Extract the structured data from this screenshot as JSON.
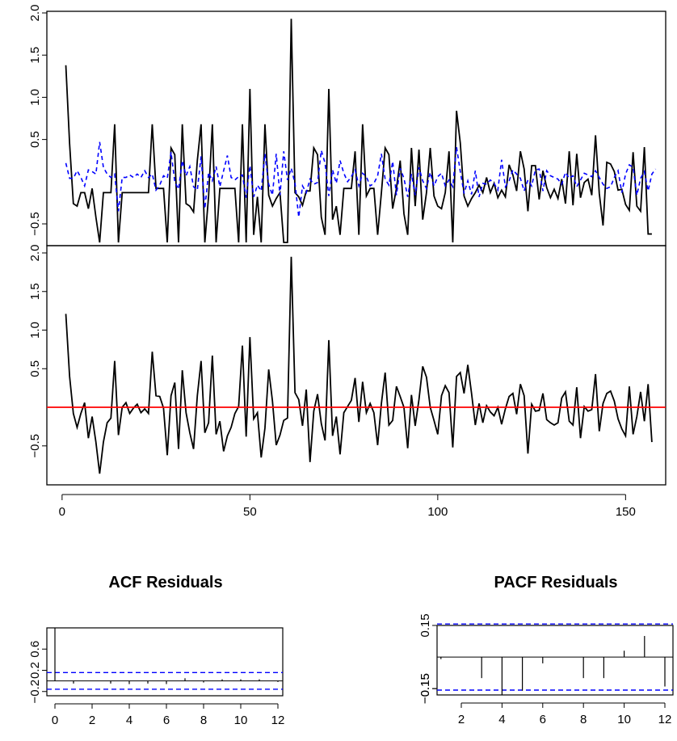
{
  "chart_data": [
    {
      "type": "line",
      "panel": "fitted",
      "series": [
        {
          "style": "solid",
          "color": "#000000",
          "values": [
            1.38,
            0.45,
            -0.26,
            -0.29,
            -0.13,
            -0.13,
            -0.32,
            -0.08,
            -0.42,
            -0.72,
            -0.13,
            -0.13,
            -0.13,
            0.68,
            -0.72,
            -0.13,
            -0.13,
            -0.13,
            -0.13,
            -0.13,
            -0.13,
            -0.13,
            -0.13,
            0.68,
            -0.08,
            -0.08,
            -0.08,
            -0.72,
            0.4,
            0.32,
            -0.72,
            0.68,
            -0.26,
            -0.29,
            -0.36,
            0.25,
            0.68,
            -0.72,
            -0.17,
            0.68,
            -0.72,
            -0.08,
            -0.08,
            -0.08,
            -0.08,
            -0.08,
            -0.72,
            0.68,
            -0.72,
            1.1,
            -0.63,
            -0.18,
            -0.72,
            0.68,
            -0.16,
            -0.29,
            -0.2,
            -0.13,
            -0.72,
            -0.72,
            1.93,
            -0.13,
            -0.18,
            -0.28,
            -0.11,
            -0.11,
            0.4,
            0.32,
            -0.42,
            -0.63,
            1.1,
            -0.45,
            -0.29,
            -0.63,
            -0.08,
            -0.08,
            -0.08,
            0.36,
            -0.63,
            0.68,
            -0.17,
            -0.08,
            -0.08,
            -0.63,
            -0.13,
            0.4,
            0.32,
            -0.32,
            -0.08,
            0.25,
            -0.38,
            -0.63,
            0.4,
            -0.29,
            0.38,
            -0.45,
            -0.13,
            0.4,
            -0.17,
            -0.29,
            -0.32,
            -0.13,
            0.36,
            -0.72,
            0.84,
            0.46,
            -0.17,
            -0.29,
            -0.2,
            -0.13,
            -0.04,
            -0.13,
            0.05,
            -0.13,
            -0.02,
            -0.19,
            -0.1,
            -0.18,
            0.2,
            0.08,
            -0.11,
            0.36,
            0.15,
            -0.35,
            0.19,
            0.19,
            -0.21,
            0.13,
            -0.07,
            -0.19,
            -0.09,
            -0.2,
            0.03,
            -0.26,
            0.36,
            -0.28,
            0.33,
            -0.19,
            -0.01,
            0.03,
            -0.16,
            0.55,
            -0.14,
            -0.52,
            0.23,
            0.21,
            0.12,
            -0.1,
            -0.09,
            -0.27,
            -0.34,
            0.35,
            -0.29,
            -0.35,
            0.41,
            -0.62,
            -0.62
          ]
        },
        {
          "style": "dashed",
          "color": "#0000ff",
          "values": [
            0.22,
            0.04,
            0.04,
            0.13,
            0.05,
            -0.05,
            0.14,
            0.12,
            0.09,
            0.47,
            0.17,
            0.09,
            0.05,
            0.09,
            -0.35,
            0.05,
            0.05,
            0.08,
            0.05,
            0.09,
            0.05,
            0.13,
            0.05,
            0.09,
            -0.1,
            -0.04,
            0.07,
            0.04,
            0.35,
            0.0,
            -0.09,
            0.25,
            0.07,
            0.18,
            -0.06,
            -0.1,
            0.3,
            -0.32,
            0.11,
            0.01,
            0.18,
            -0.06,
            0.13,
            0.31,
            0.05,
            0.02,
            0.06,
            0.08,
            -0.19,
            0.19,
            -0.18,
            -0.04,
            -0.11,
            0.33,
            -0.03,
            -0.16,
            0.33,
            -0.16,
            0.36,
            0.02,
            0.16,
            -0.02,
            -0.42,
            -0.05,
            -0.13,
            0.03,
            -0.03,
            -0.01,
            0.37,
            0.22,
            -0.17,
            0.14,
            -0.02,
            0.25,
            0.1,
            0.0,
            0.06,
            0.14,
            -0.05,
            0.1,
            0.06,
            -0.05,
            -0.02,
            0.07,
            0.33,
            0.03,
            -0.04,
            0.24,
            -0.16,
            0.16,
            0.04,
            -0.18,
            0.09,
            -0.16,
            0.17,
            0.01,
            -0.08,
            0.11,
            -0.05,
            0.06,
            0.1,
            -0.05,
            0.02,
            -0.06,
            0.41,
            0.12,
            -0.14,
            0.01,
            -0.15,
            0.13,
            -0.18,
            -0.02,
            -0.03,
            0.02,
            -0.02,
            -0.1,
            0.26,
            -0.06,
            0.01,
            0.14,
            0.09,
            0.04,
            -0.11,
            0.02,
            -0.05,
            0.14,
            0.15,
            -0.11,
            0.13,
            0.07,
            0.05,
            0.03,
            -0.03,
            0.11,
            0.04,
            0.07,
            -0.06,
            0.02,
            0.1,
            0.08,
            0.06,
            0.13,
            0.05,
            -0.03,
            -0.08,
            -0.06,
            0.05,
            0.13,
            -0.13,
            0.09,
            0.2,
            0.17,
            -0.16,
            0.04,
            0.12,
            -0.11,
            0.09,
            0.15
          ]
        }
      ],
      "ylim": [
        -0.72,
        2.0
      ],
      "yticks": [
        "-0.5",
        "0.5",
        "1.0",
        "1.5",
        "2.0"
      ],
      "xlim": [
        1,
        156
      ]
    },
    {
      "type": "line",
      "panel": "residuals",
      "series": [
        {
          "style": "solid",
          "color": "#000000",
          "values": [
            1.21,
            0.4,
            -0.08,
            -0.26,
            -0.08,
            0.06,
            -0.4,
            -0.12,
            -0.45,
            -0.86,
            -0.45,
            -0.2,
            -0.14,
            0.6,
            -0.36,
            0.0,
            0.06,
            -0.08,
            -0.01,
            0.04,
            -0.07,
            -0.02,
            -0.08,
            0.72,
            0.15,
            0.14,
            -0.01,
            -0.62,
            0.15,
            0.32,
            -0.54,
            0.48,
            -0.07,
            -0.33,
            -0.54,
            0.15,
            0.6,
            -0.33,
            -0.2,
            0.67,
            -0.35,
            -0.18,
            -0.57,
            -0.37,
            -0.26,
            -0.08,
            0.01,
            0.8,
            -0.38,
            0.91,
            -0.15,
            -0.07,
            -0.65,
            -0.27,
            0.49,
            0.08,
            -0.49,
            -0.36,
            -0.17,
            -0.14,
            1.95,
            0.19,
            0.1,
            -0.24,
            0.23,
            -0.71,
            -0.05,
            0.17,
            -0.21,
            -0.43,
            0.87,
            -0.37,
            -0.12,
            -0.61,
            -0.07,
            0.01,
            0.09,
            0.38,
            -0.19,
            0.33,
            -0.07,
            0.05,
            -0.07,
            -0.49,
            0.05,
            0.45,
            -0.23,
            -0.17,
            0.27,
            0.14,
            0.0,
            -0.53,
            0.16,
            -0.24,
            0.1,
            0.53,
            0.39,
            0.0,
            -0.17,
            -0.35,
            0.15,
            0.28,
            0.19,
            -0.52,
            0.4,
            0.45,
            0.18,
            0.55,
            0.18,
            -0.23,
            0.05,
            -0.2,
            0.02,
            -0.06,
            -0.11,
            0.0,
            -0.22,
            -0.02,
            0.14,
            0.18,
            -0.09,
            0.3,
            0.15,
            -0.6,
            0.04,
            -0.05,
            -0.04,
            0.18,
            -0.16,
            -0.2,
            -0.23,
            -0.2,
            0.12,
            0.2,
            -0.18,
            -0.23,
            0.26,
            -0.4,
            0.01,
            -0.05,
            -0.03,
            0.43,
            -0.31,
            0.05,
            0.18,
            0.21,
            0.08,
            -0.15,
            -0.28,
            -0.37,
            0.27,
            -0.35,
            -0.12,
            0.2,
            -0.18,
            0.3,
            -0.45
          ]
        },
        {
          "style": "solid",
          "color": "#ff0000",
          "values": [
            0,
            0
          ]
        }
      ],
      "ylim": [
        -0.9,
        2.0
      ],
      "yticks": [
        "-0.5",
        "0.5",
        "1.0",
        "1.5",
        "2.0"
      ],
      "xlim": [
        1,
        156
      ],
      "xticks": [
        "0",
        "50",
        "100",
        "150"
      ]
    },
    {
      "type": "bar",
      "panel": "acf",
      "title": "ACF Residuals",
      "lags": [
        0,
        1,
        2,
        3,
        4,
        5,
        6,
        7,
        8,
        9,
        10,
        11,
        12
      ],
      "values": [
        1.0,
        -0.05,
        0.0,
        -0.05,
        -0.06,
        -0.05,
        -0.06,
        0.05,
        -0.03,
        0.03,
        0.03,
        0.03,
        -0.02
      ],
      "ci": 0.157,
      "ylim": [
        -0.28,
        1.0
      ],
      "yticks": [
        "-0.2",
        "0.2",
        "0.6"
      ],
      "xticks": [
        "0",
        "2",
        "4",
        "6",
        "8",
        "10",
        "12"
      ]
    },
    {
      "type": "bar",
      "panel": "pacf",
      "title": "PACF Residuals",
      "lags": [
        1,
        2,
        3,
        4,
        5,
        6,
        7,
        8,
        9,
        10,
        11,
        12
      ],
      "values": [
        -0.01,
        0.0,
        -0.1,
        -0.18,
        -0.16,
        -0.03,
        0.0,
        -0.1,
        -0.1,
        0.03,
        0.1,
        -0.14
      ],
      "ci": 0.157,
      "ylim": [
        -0.18,
        0.15
      ],
      "yticks": [
        "-0.15",
        "-0.15",
        "0.15"
      ],
      "xticks": [
        "2",
        "4",
        "6",
        "8",
        "10",
        "12"
      ]
    }
  ]
}
